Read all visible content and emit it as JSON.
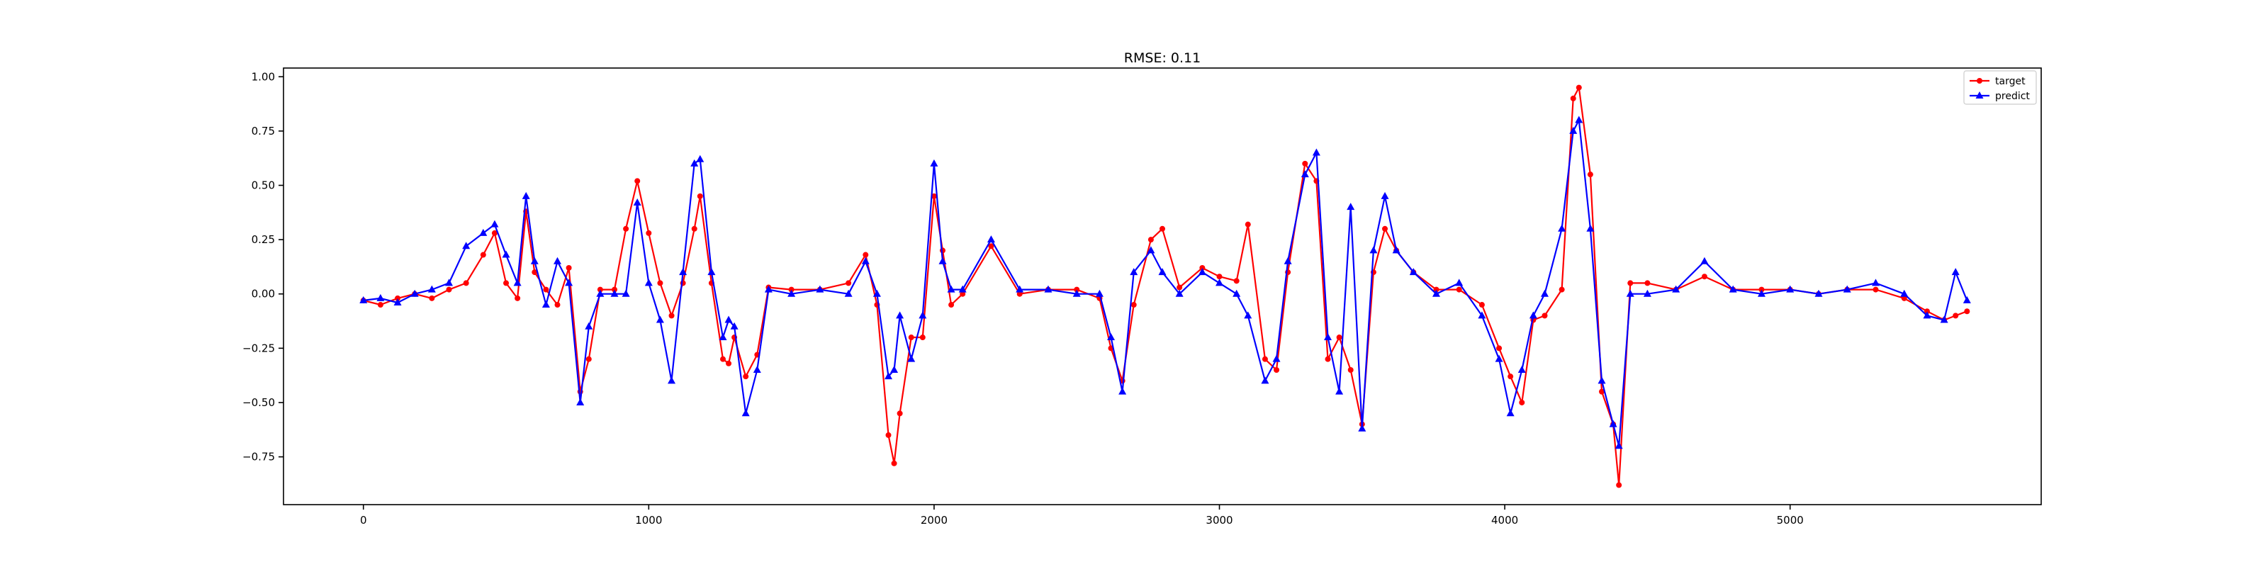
{
  "chart_data": {
    "type": "line",
    "title": "RMSE: 0.11",
    "xlabel": "",
    "ylabel": "",
    "xlim": [
      -280,
      5880
    ],
    "ylim": [
      -0.97,
      1.04
    ],
    "x_ticks": [
      0,
      1000,
      2000,
      3000,
      4000,
      5000
    ],
    "x_tick_labels": [
      "0",
      "1000",
      "2000",
      "3000",
      "4000",
      "5000"
    ],
    "y_ticks": [
      -0.75,
      -0.5,
      -0.25,
      0.0,
      0.25,
      0.5,
      0.75,
      1.0
    ],
    "y_tick_labels": [
      "−0.75",
      "−0.50",
      "−0.25",
      "0.00",
      "0.25",
      "0.50",
      "0.75",
      "1.00"
    ],
    "grid": false,
    "legend_position": "top-right",
    "series": [
      {
        "name": "target",
        "color": "#ff0000",
        "marker": "circle",
        "x": [
          0,
          60,
          120,
          180,
          240,
          300,
          360,
          420,
          460,
          500,
          540,
          570,
          600,
          640,
          680,
          720,
          760,
          790,
          830,
          880,
          920,
          960,
          1000,
          1040,
          1080,
          1120,
          1160,
          1180,
          1220,
          1260,
          1280,
          1300,
          1340,
          1380,
          1420,
          1500,
          1600,
          1700,
          1760,
          1800,
          1840,
          1860,
          1880,
          1920,
          1960,
          2000,
          2030,
          2060,
          2100,
          2200,
          2300,
          2400,
          2500,
          2580,
          2620,
          2660,
          2700,
          2760,
          2800,
          2860,
          2940,
          3000,
          3060,
          3100,
          3160,
          3200,
          3240,
          3300,
          3340,
          3380,
          3420,
          3460,
          3500,
          3540,
          3580,
          3620,
          3680,
          3760,
          3840,
          3920,
          3980,
          4020,
          4060,
          4100,
          4140,
          4200,
          4240,
          4260,
          4300,
          4340,
          4380,
          4400,
          4440,
          4500,
          4600,
          4700,
          4800,
          4900,
          5000,
          5100,
          5200,
          5300,
          5400,
          5480,
          5540,
          5580,
          5620
        ],
        "y": [
          -0.03,
          -0.05,
          -0.02,
          0.0,
          -0.02,
          0.02,
          0.05,
          0.18,
          0.28,
          0.05,
          -0.02,
          0.38,
          0.1,
          0.02,
          -0.05,
          0.12,
          -0.45,
          -0.3,
          0.02,
          0.02,
          0.3,
          0.52,
          0.28,
          0.05,
          -0.1,
          0.05,
          0.3,
          0.45,
          0.05,
          -0.3,
          -0.32,
          -0.2,
          -0.38,
          -0.28,
          0.03,
          0.02,
          0.02,
          0.05,
          0.18,
          -0.05,
          -0.65,
          -0.78,
          -0.55,
          -0.2,
          -0.2,
          0.45,
          0.2,
          -0.05,
          0.0,
          0.22,
          0.0,
          0.02,
          0.02,
          -0.02,
          -0.25,
          -0.4,
          -0.05,
          0.25,
          0.3,
          0.03,
          0.12,
          0.08,
          0.06,
          0.32,
          -0.3,
          -0.35,
          0.1,
          0.6,
          0.52,
          -0.3,
          -0.2,
          -0.35,
          -0.6,
          0.1,
          0.3,
          0.2,
          0.1,
          0.02,
          0.02,
          -0.05,
          -0.25,
          -0.38,
          -0.5,
          -0.12,
          -0.1,
          0.02,
          0.9,
          0.95,
          0.55,
          -0.45,
          -0.6,
          -0.88,
          0.05,
          0.05,
          0.02,
          0.08,
          0.02,
          0.02,
          0.02,
          0.0,
          0.02,
          0.02,
          -0.02,
          -0.08,
          -0.12,
          -0.1,
          -0.08
        ]
      },
      {
        "name": "predict",
        "color": "#0000ff",
        "marker": "triangle",
        "x": [
          0,
          60,
          120,
          180,
          240,
          300,
          360,
          420,
          460,
          500,
          540,
          570,
          600,
          640,
          680,
          720,
          760,
          790,
          830,
          880,
          920,
          960,
          1000,
          1040,
          1080,
          1120,
          1160,
          1180,
          1220,
          1260,
          1280,
          1300,
          1340,
          1380,
          1420,
          1500,
          1600,
          1700,
          1760,
          1800,
          1840,
          1860,
          1880,
          1920,
          1960,
          2000,
          2030,
          2060,
          2100,
          2200,
          2300,
          2400,
          2500,
          2580,
          2620,
          2660,
          2700,
          2760,
          2800,
          2860,
          2940,
          3000,
          3060,
          3100,
          3160,
          3200,
          3240,
          3300,
          3340,
          3380,
          3420,
          3460,
          3500,
          3540,
          3580,
          3620,
          3680,
          3760,
          3840,
          3920,
          3980,
          4020,
          4060,
          4100,
          4140,
          4200,
          4240,
          4260,
          4300,
          4340,
          4380,
          4400,
          4440,
          4500,
          4600,
          4700,
          4800,
          4900,
          5000,
          5100,
          5200,
          5300,
          5400,
          5480,
          5540,
          5580,
          5620
        ],
        "y": [
          -0.03,
          -0.02,
          -0.04,
          0.0,
          0.02,
          0.05,
          0.22,
          0.28,
          0.32,
          0.18,
          0.05,
          0.45,
          0.15,
          -0.05,
          0.15,
          0.05,
          -0.5,
          -0.15,
          0.0,
          0.0,
          0.0,
          0.42,
          0.05,
          -0.12,
          -0.4,
          0.1,
          0.6,
          0.62,
          0.1,
          -0.2,
          -0.12,
          -0.15,
          -0.55,
          -0.35,
          0.02,
          0.0,
          0.02,
          0.0,
          0.15,
          0.0,
          -0.38,
          -0.35,
          -0.1,
          -0.3,
          -0.1,
          0.6,
          0.15,
          0.02,
          0.02,
          0.25,
          0.02,
          0.02,
          0.0,
          0.0,
          -0.2,
          -0.45,
          0.1,
          0.2,
          0.1,
          0.0,
          0.1,
          0.05,
          0.0,
          -0.1,
          -0.4,
          -0.3,
          0.15,
          0.55,
          0.65,
          -0.2,
          -0.45,
          0.4,
          -0.62,
          0.2,
          0.45,
          0.2,
          0.1,
          0.0,
          0.05,
          -0.1,
          -0.3,
          -0.55,
          -0.35,
          -0.1,
          0.0,
          0.3,
          0.75,
          0.8,
          0.3,
          -0.4,
          -0.6,
          -0.7,
          0.0,
          0.0,
          0.02,
          0.15,
          0.02,
          0.0,
          0.02,
          0.0,
          0.02,
          0.05,
          0.0,
          -0.1,
          -0.12,
          0.1,
          -0.03
        ]
      }
    ]
  }
}
